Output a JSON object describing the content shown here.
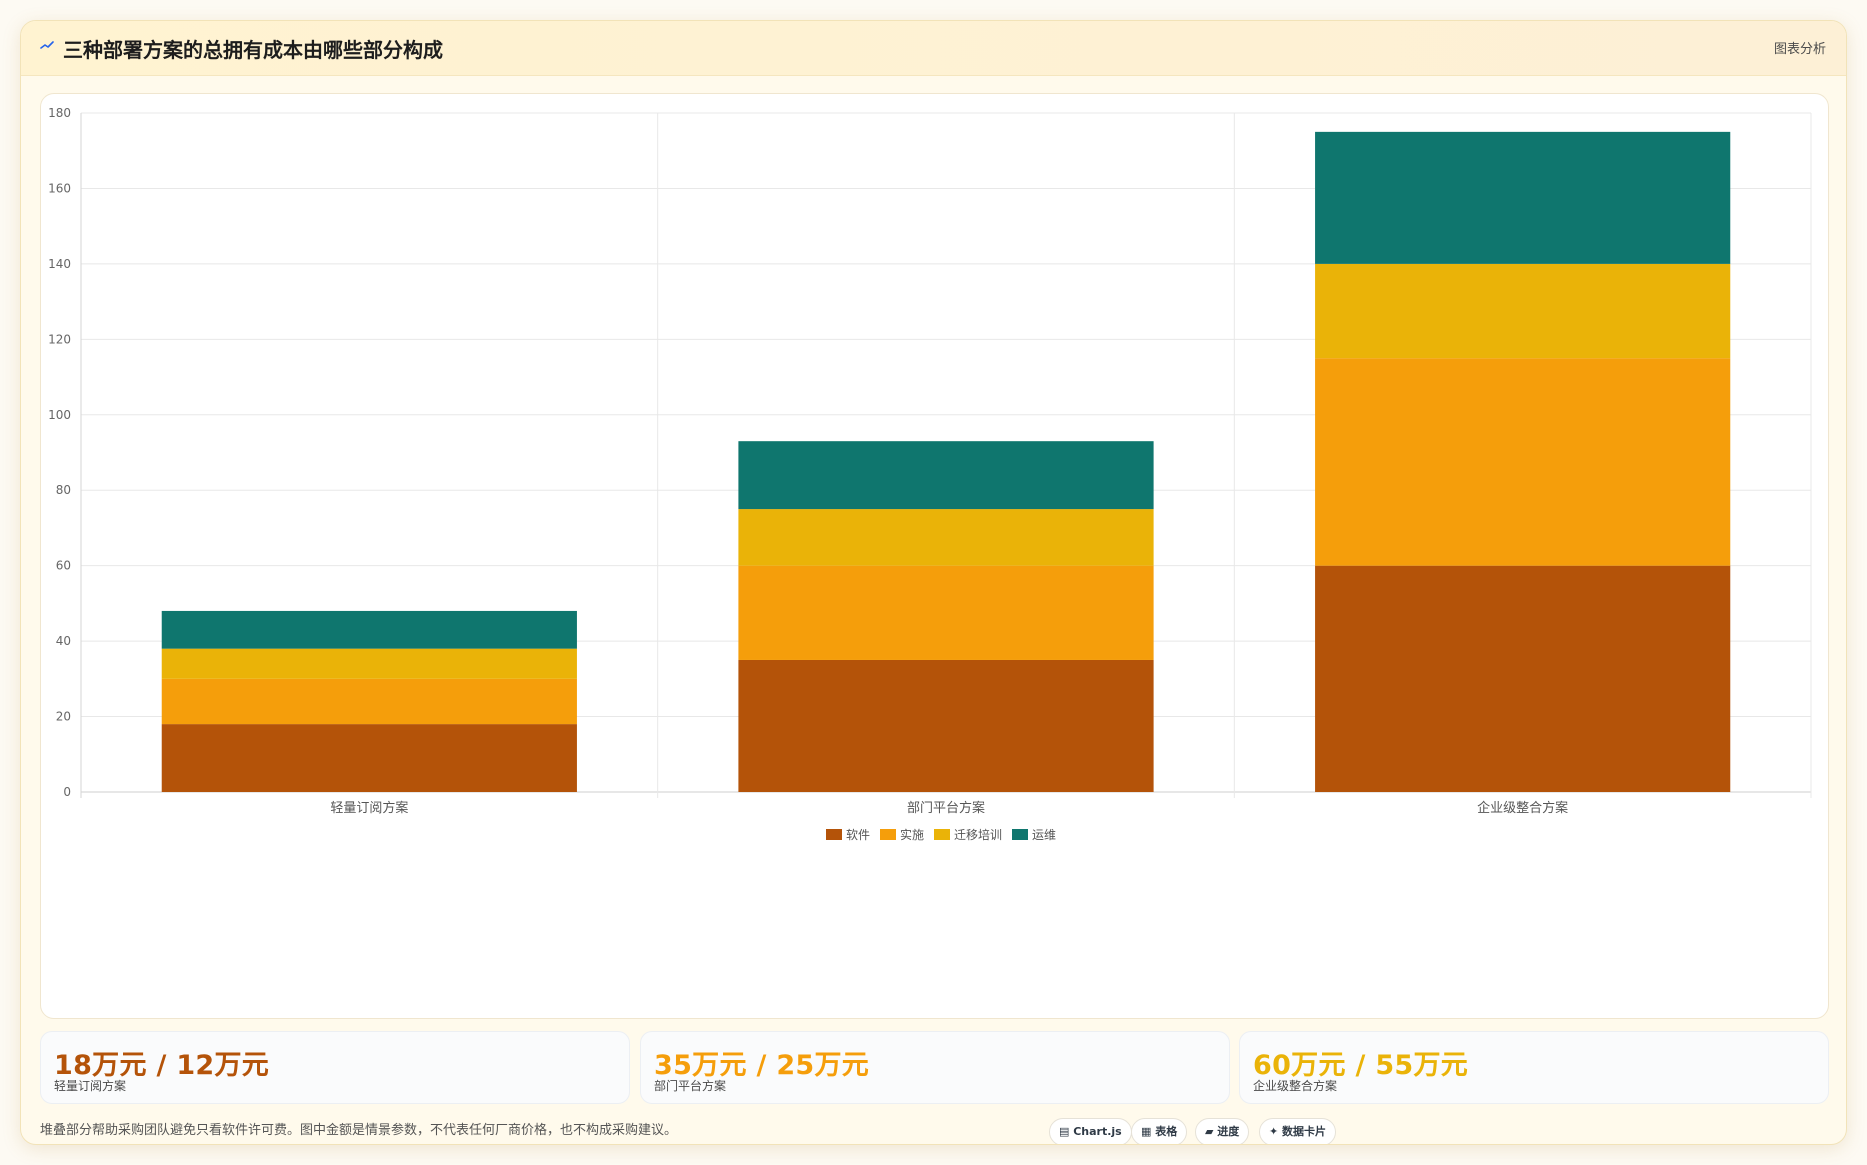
{
  "header": {
    "icon": "chart-line-icon",
    "title": "三种部署方案的总拥有成本由哪些部分构成",
    "action": "图表分析"
  },
  "chart_data": {
    "type": "bar",
    "stacked": true,
    "categories": [
      "轻量订阅方案",
      "部门平台方案",
      "企业级整合方案"
    ],
    "series": [
      {
        "name": "软件",
        "color": "#b45309",
        "values": [
          18,
          35,
          60
        ]
      },
      {
        "name": "实施",
        "color": "#f59e0b",
        "values": [
          12,
          25,
          55
        ]
      },
      {
        "name": "迁移培训",
        "color": "#eab308",
        "values": [
          8,
          15,
          25
        ]
      },
      {
        "name": "运维",
        "color": "#0f766e",
        "values": [
          10,
          18,
          35
        ]
      }
    ],
    "ylim": [
      0,
      180
    ],
    "yticks": [
      0,
      20,
      40,
      60,
      80,
      100,
      120,
      140,
      160,
      180
    ],
    "grid": true,
    "legend_position": "bottom"
  },
  "stats": [
    {
      "value": "18万元 / 12万元",
      "label": "轻量订阅方案",
      "color": "#b45309"
    },
    {
      "value": "35万元 / 25万元",
      "label": "部门平台方案",
      "color": "#f59e0b"
    },
    {
      "value": "60万元 / 55万元",
      "label": "企业级整合方案",
      "color": "#eab308"
    }
  ],
  "footer": {
    "note": "堆叠部分帮助采购团队避免只看软件许可费。图中金额是情景参数，不代表任何厂商价格，也不构成采购建议。",
    "chips": [
      {
        "label": "▤ Chart.js",
        "icon": "chart-js-icon"
      },
      {
        "label": "▦ 表格",
        "icon": "table-icon"
      },
      {
        "label": "▰ 进度",
        "icon": "progress-icon"
      },
      {
        "label": "✦ 数据卡片",
        "icon": "data-card-icon"
      }
    ]
  }
}
